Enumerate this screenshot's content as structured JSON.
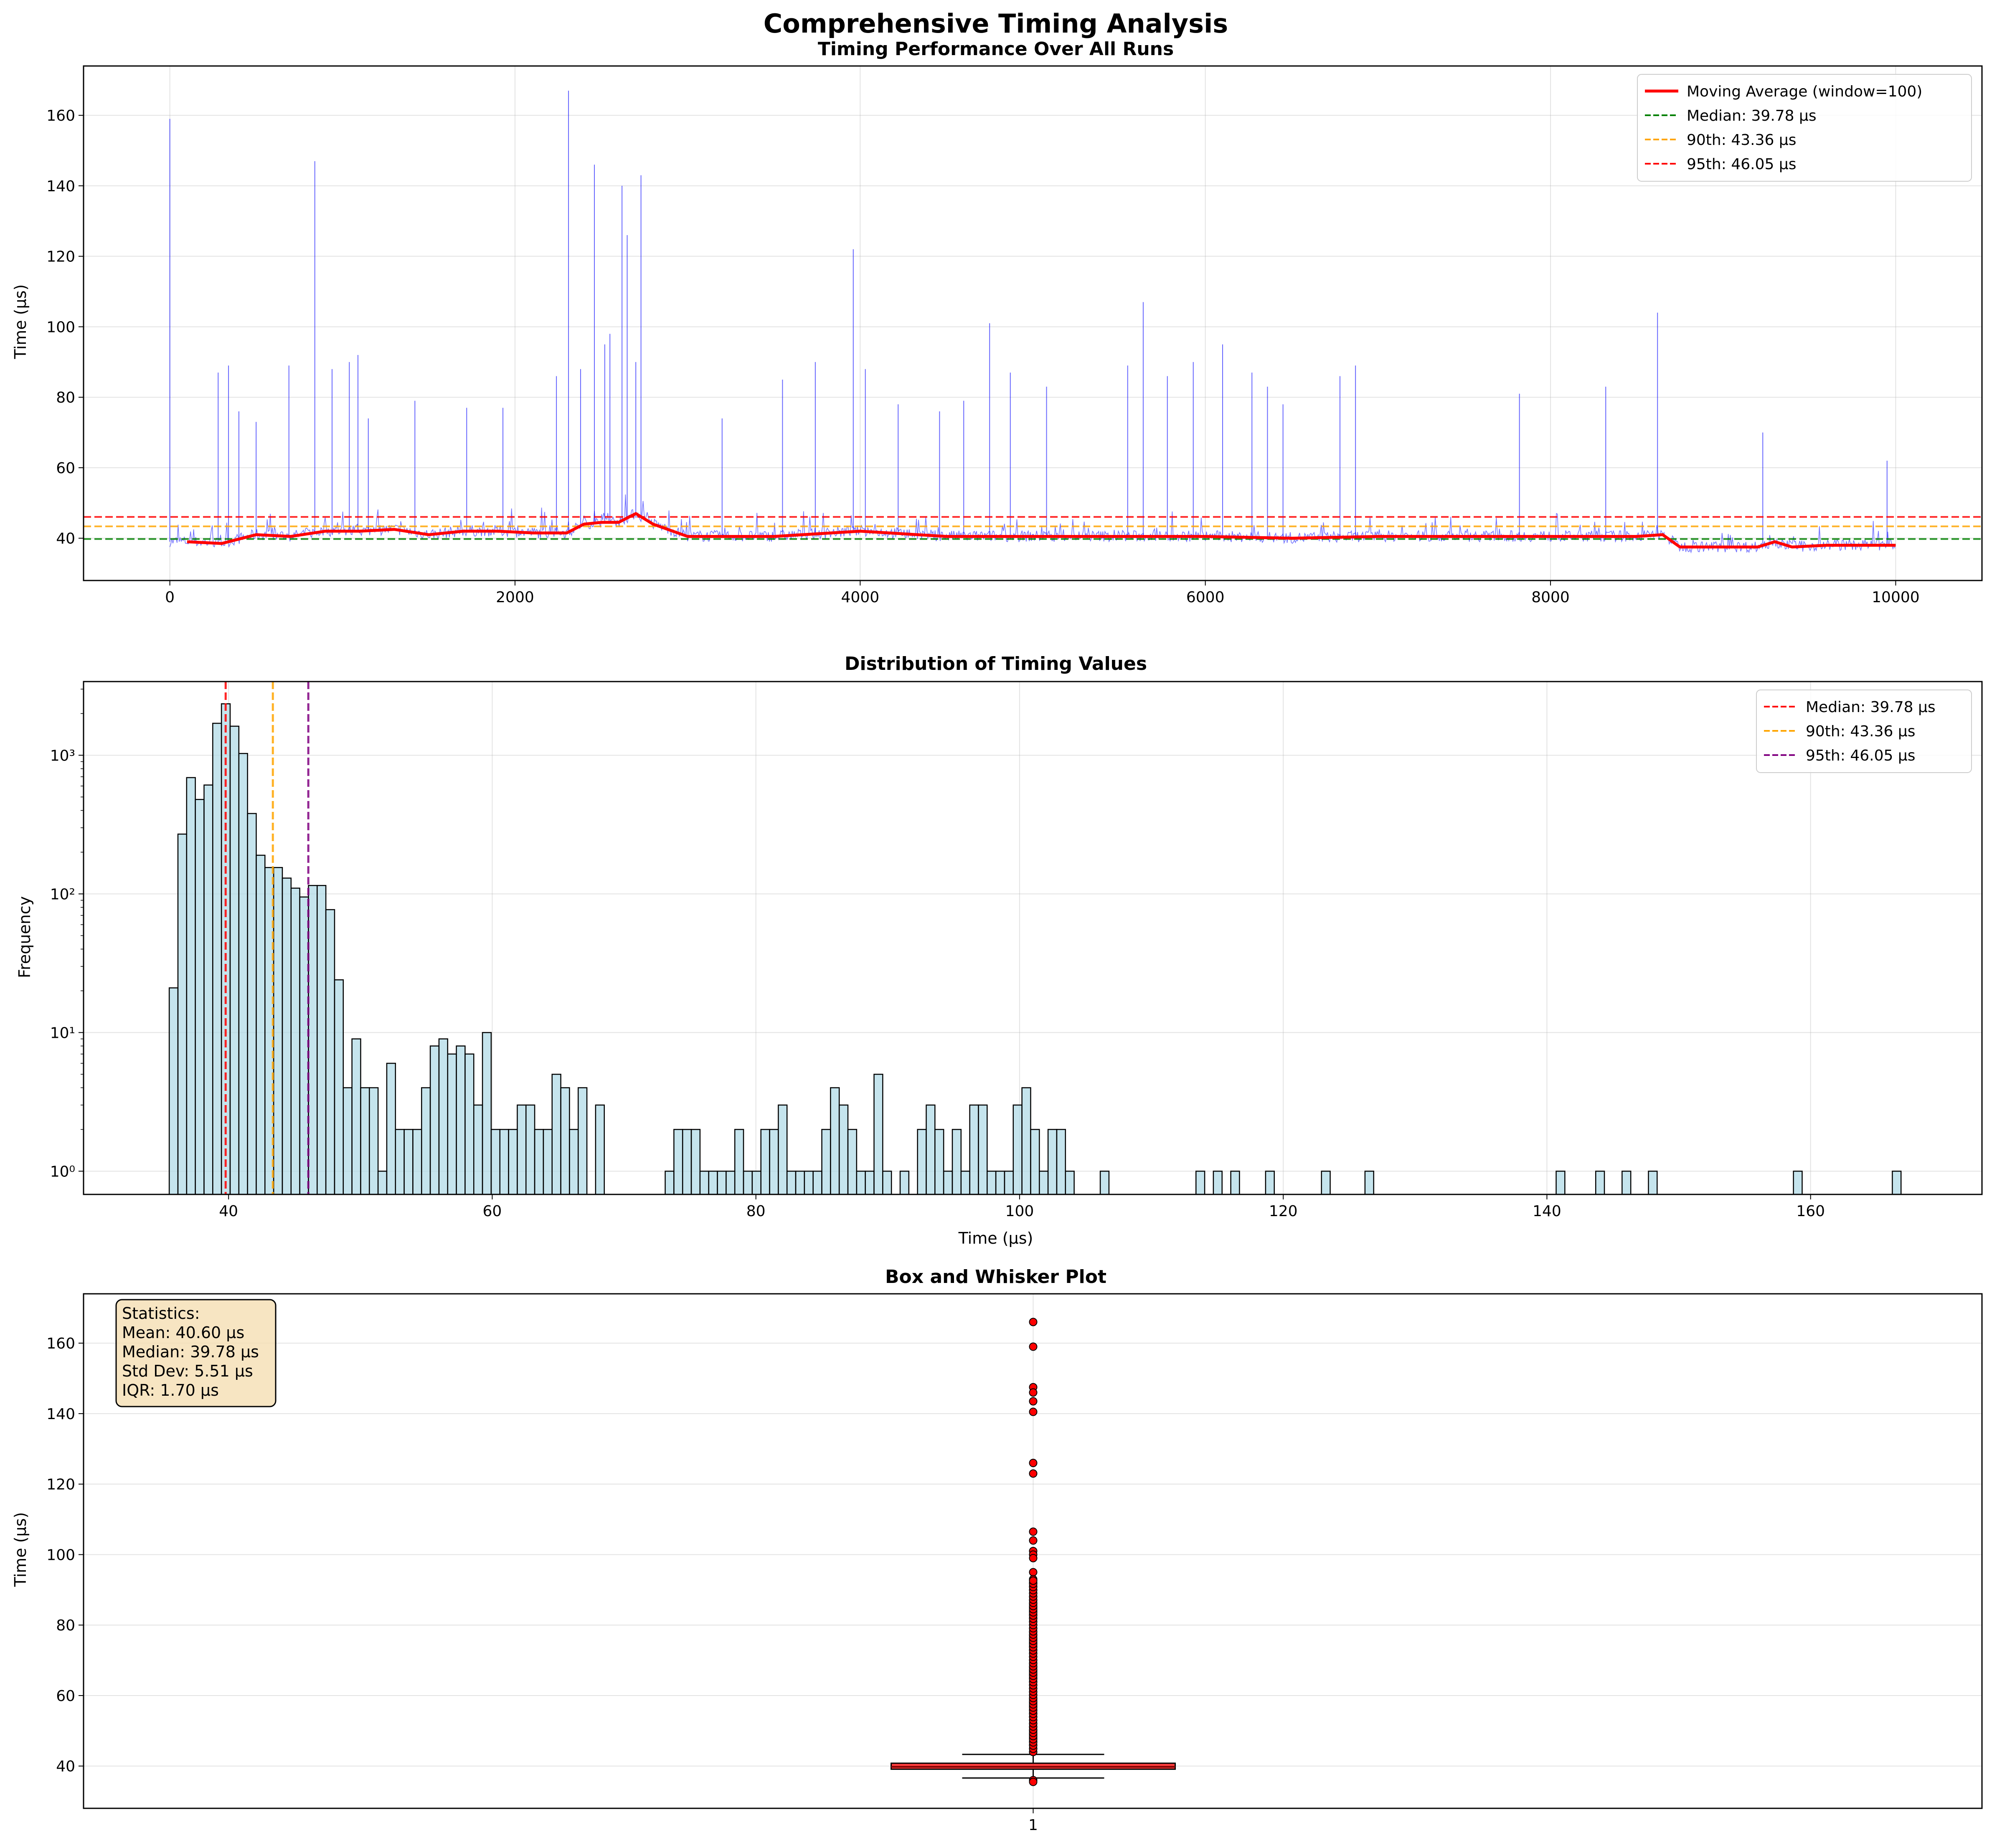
{
  "figure": {
    "suptitle": "Comprehensive Timing Analysis"
  },
  "colors": {
    "raw_line": "#0000ff",
    "moving_avg": "#ff0000",
    "median_line": "#008000",
    "p90_line": "#ffa500",
    "p95_line": "#ff0000",
    "hist_fill": "#add8e6",
    "hist_edge": "#000000",
    "hist_median": "#ff0000",
    "hist_p90": "#ffa500",
    "hist_p95": "#800080",
    "box_fill": "#ff0000",
    "grid": "#b0b0b0",
    "stats_box": "#f5deb3"
  },
  "chart_data": [
    {
      "type": "line",
      "title": "Timing Performance Over All Runs",
      "xlabel": "",
      "ylabel": "Time (µs)",
      "xlim": [
        -500,
        10500
      ],
      "ylim": [
        28,
        174
      ],
      "xticks": [
        0,
        2000,
        4000,
        6000,
        8000,
        10000
      ],
      "yticks": [
        40,
        60,
        80,
        100,
        120,
        140,
        160
      ],
      "grid": true,
      "legend_position": "top-right",
      "series": [
        {
          "name": "Moving Average (window=100)",
          "x": [
            100,
            300,
            500,
            700,
            900,
            1100,
            1300,
            1500,
            1700,
            1900,
            2100,
            2300,
            2400,
            2500,
            2600,
            2700,
            2800,
            3000,
            3500,
            4000,
            4500,
            5000,
            5500,
            6000,
            6500,
            7000,
            7500,
            8000,
            8500,
            8650,
            8750,
            9000,
            9200,
            9300,
            9400,
            9600,
            9800,
            10000
          ],
          "values": [
            39,
            38.5,
            41,
            40.5,
            42,
            42,
            42.5,
            41,
            42,
            42,
            41.5,
            41.5,
            44,
            44.5,
            44.5,
            47,
            44,
            40.5,
            40.5,
            42,
            40.5,
            40.5,
            40.5,
            40.5,
            40,
            40.5,
            40.5,
            40.5,
            40.5,
            41,
            37.5,
            37.5,
            37.5,
            39,
            37.5,
            38,
            38,
            38
          ]
        }
      ],
      "spikes": [
        {
          "x": 0,
          "values": 159
        },
        {
          "x": 280,
          "values": 87
        },
        {
          "x": 340,
          "values": 89
        },
        {
          "x": 400,
          "values": 76
        },
        {
          "x": 500,
          "values": 73
        },
        {
          "x": 690,
          "values": 89
        },
        {
          "x": 840,
          "values": 147
        },
        {
          "x": 940,
          "values": 88
        },
        {
          "x": 1040,
          "values": 90
        },
        {
          "x": 1090,
          "values": 92
        },
        {
          "x": 1150,
          "values": 74
        },
        {
          "x": 1420,
          "values": 79
        },
        {
          "x": 1720,
          "values": 77
        },
        {
          "x": 1930,
          "values": 77
        },
        {
          "x": 2240,
          "values": 86
        },
        {
          "x": 2310,
          "values": 167
        },
        {
          "x": 2380,
          "values": 88
        },
        {
          "x": 2460,
          "values": 146
        },
        {
          "x": 2520,
          "values": 95
        },
        {
          "x": 2550,
          "values": 98
        },
        {
          "x": 2620,
          "values": 140
        },
        {
          "x": 2650,
          "values": 126
        },
        {
          "x": 2700,
          "values": 90
        },
        {
          "x": 2730,
          "values": 143
        },
        {
          "x": 3200,
          "values": 74
        },
        {
          "x": 3550,
          "values": 85
        },
        {
          "x": 3740,
          "values": 90
        },
        {
          "x": 3960,
          "values": 122
        },
        {
          "x": 4030,
          "values": 88
        },
        {
          "x": 4220,
          "values": 78
        },
        {
          "x": 4460,
          "values": 76
        },
        {
          "x": 4600,
          "values": 79
        },
        {
          "x": 4750,
          "values": 101
        },
        {
          "x": 4870,
          "values": 87
        },
        {
          "x": 5080,
          "values": 83
        },
        {
          "x": 5550,
          "values": 89
        },
        {
          "x": 5640,
          "values": 107
        },
        {
          "x": 5780,
          "values": 86
        },
        {
          "x": 5930,
          "values": 90
        },
        {
          "x": 6100,
          "values": 95
        },
        {
          "x": 6270,
          "values": 87
        },
        {
          "x": 6360,
          "values": 83
        },
        {
          "x": 6450,
          "values": 78
        },
        {
          "x": 6780,
          "values": 86
        },
        {
          "x": 6870,
          "values": 89
        },
        {
          "x": 7820,
          "values": 81
        },
        {
          "x": 8320,
          "values": 83
        },
        {
          "x": 8620,
          "values": 104
        },
        {
          "x": 9230,
          "values": 70
        },
        {
          "x": 9950,
          "values": 62
        }
      ],
      "hlines": [
        {
          "name": "Median: 39.78 µs",
          "values": 39.78
        },
        {
          "name": "90th: 43.36 µs",
          "values": 43.36
        },
        {
          "name": "95th: 46.05 µs",
          "values": 46.05
        }
      ]
    },
    {
      "type": "bar",
      "title": "Distribution of Timing Values",
      "xlabel": "Time (µs)",
      "ylabel": "Frequency",
      "xscale": "linear",
      "yscale": "log",
      "xlim": [
        29,
        173
      ],
      "ylim": [
        0.68,
        3400
      ],
      "xticks": [
        40,
        60,
        80,
        100,
        120,
        140,
        160
      ],
      "ytick_labels": [
        "10⁰",
        "10¹",
        "10²",
        "10³"
      ],
      "ytick_values": [
        1,
        10,
        100,
        1000
      ],
      "grid": true,
      "legend_position": "top-right",
      "bin_start": 35.5,
      "bin_width": 0.66,
      "counts": [
        21,
        270,
        690,
        480,
        610,
        1700,
        2350,
        1620,
        1030,
        380,
        190,
        155,
        155,
        130,
        110,
        95,
        115,
        115,
        77,
        24,
        4,
        9,
        4,
        4,
        1,
        6,
        2,
        2,
        2,
        4,
        8,
        9,
        7,
        8,
        7,
        3,
        10,
        2,
        2,
        2,
        3,
        3,
        2,
        2,
        5,
        4,
        2,
        4,
        0,
        3,
        0,
        0,
        0,
        0,
        0,
        0,
        0,
        1,
        2,
        2,
        2,
        1,
        1,
        1,
        1,
        2,
        1,
        1,
        2,
        2,
        3,
        1,
        1,
        1,
        1,
        2,
        4,
        3,
        2,
        1,
        1,
        5,
        1,
        0,
        1,
        0,
        2,
        3,
        2,
        1,
        2,
        1,
        3,
        3,
        1,
        1,
        1,
        3,
        4,
        2,
        1,
        2,
        2,
        1,
        0,
        0,
        0,
        1,
        0,
        0,
        0,
        0,
        0,
        0,
        0,
        0,
        0,
        0,
        1,
        0,
        1,
        0,
        1,
        0,
        0,
        0,
        1,
        0,
        0,
        0,
        0,
        1,
        0,
        0,
        0,
        0,
        0,
        0,
        0,
        0,
        0,
        0,
        0,
        0,
        0,
        0,
        0,
        0,
        0,
        0,
        0,
        0,
        0,
        0,
        0,
        0,
        0,
        0,
        0,
        0,
        0,
        1,
        0,
        0,
        0,
        0,
        0,
        1,
        0,
        0,
        0,
        0,
        0,
        0,
        0,
        0,
        0,
        0,
        0,
        0,
        0,
        0,
        0,
        0,
        0,
        0,
        0,
        0,
        0,
        0,
        0,
        0,
        0,
        0,
        0,
        0,
        0,
        0,
        1,
        0,
        0,
        0,
        0,
        0,
        0,
        0,
        0,
        0,
        0,
        0,
        0,
        0,
        0,
        0,
        0,
        0,
        0,
        0,
        0,
        0,
        0,
        0,
        0,
        0,
        0,
        0,
        0,
        0,
        0,
        0,
        0,
        0,
        0,
        0,
        0,
        0,
        0,
        0,
        0,
        0,
        0,
        0,
        0,
        0,
        0,
        0,
        0,
        0,
        0,
        0,
        0,
        0,
        0,
        0,
        0,
        0,
        0,
        0,
        0,
        0,
        0,
        0,
        0,
        0,
        0,
        0,
        0,
        0,
        0,
        0,
        0,
        0,
        0,
        0,
        0,
        0,
        0,
        0
      ],
      "extra_bins": [
        {
          "x": 122.9,
          "values": 1
        },
        {
          "x": 126.2,
          "values": 1
        },
        {
          "x": 140.7,
          "values": 1
        },
        {
          "x": 143.7,
          "values": 1
        },
        {
          "x": 145.7,
          "values": 1
        },
        {
          "x": 147.7,
          "values": 1
        },
        {
          "x": 158.7,
          "values": 1
        },
        {
          "x": 166.2,
          "values": 1
        }
      ],
      "vlines": [
        {
          "name": "Median: 39.78 µs",
          "values": 39.78
        },
        {
          "name": "90th: 43.36 µs",
          "values": 43.36
        },
        {
          "name": "95th: 46.05 µs",
          "values": 46.05
        }
      ]
    },
    {
      "type": "box",
      "title": "Box and Whisker Plot",
      "xlabel": "",
      "ylabel": "Time (µs)",
      "ylim": [
        28,
        174
      ],
      "yticks": [
        40,
        60,
        80,
        100,
        120,
        140,
        160
      ],
      "xtick_labels": [
        "1"
      ],
      "grid": true,
      "box": {
        "q1": 39.1,
        "median": 39.78,
        "q3": 40.8,
        "whisker_low": 36.6,
        "whisker_high": 43.3
      },
      "outliers": [
        166,
        159,
        147.5,
        146,
        143.5,
        140.5,
        126,
        123,
        106.5,
        104,
        101,
        100,
        99,
        95,
        93,
        92,
        91,
        90,
        89,
        88,
        87,
        86,
        85,
        84,
        83,
        82,
        81,
        80,
        79,
        78,
        77,
        76,
        75,
        74,
        73,
        72,
        71,
        70,
        69,
        68,
        67,
        66,
        65,
        64,
        63,
        62,
        61,
        60,
        59,
        58,
        57,
        56,
        55,
        54,
        53,
        52,
        51,
        50,
        49,
        48,
        47,
        46,
        45,
        44,
        36,
        35.5
      ],
      "stats_box": {
        "lines": [
          "Statistics:",
          "Mean: 40.60 µs",
          "Median: 39.78 µs",
          "Std Dev: 5.51 µs",
          "IQR: 1.70 µs"
        ]
      }
    }
  ]
}
